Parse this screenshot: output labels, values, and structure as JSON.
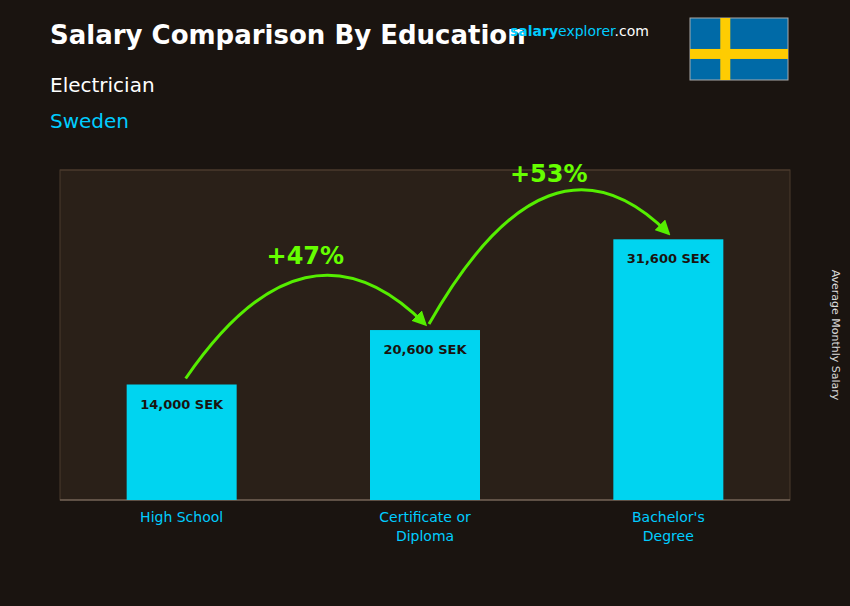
{
  "chart_data": {
    "type": "bar",
    "title": "Salary Comparison By Education",
    "subtitle": [
      "Electrician",
      "Sweden"
    ],
    "y_label": "Average Monthly Salary",
    "categories": [
      "High School",
      "Certificate or\nDiploma",
      "Bachelor's\nDegree"
    ],
    "values": [
      14000,
      20600,
      31600
    ],
    "value_labels": [
      "14,000 SEK",
      "20,600 SEK",
      "31,600 SEK"
    ],
    "data_labels": true,
    "tick_labels": false,
    "grid": false,
    "ylim": [
      0,
      40000
    ],
    "color": "#00d4f0",
    "label_color": "#00ccff",
    "changes": [
      {
        "value": 47,
        "label": "+47%"
      },
      {
        "value": 53,
        "label": "+53%"
      }
    ],
    "change_color": "#66ff00",
    "arrow_color": "#55ee00",
    "watermark": [
      {
        "text": "salary",
        "color": "#00ccff"
      },
      {
        "text": "explorer",
        "color": "#00ccff"
      },
      {
        "text": ".com",
        "color": "#ffffff"
      }
    ],
    "flag_colors": [
      "#006AA7",
      "#FECC02"
    ]
  }
}
